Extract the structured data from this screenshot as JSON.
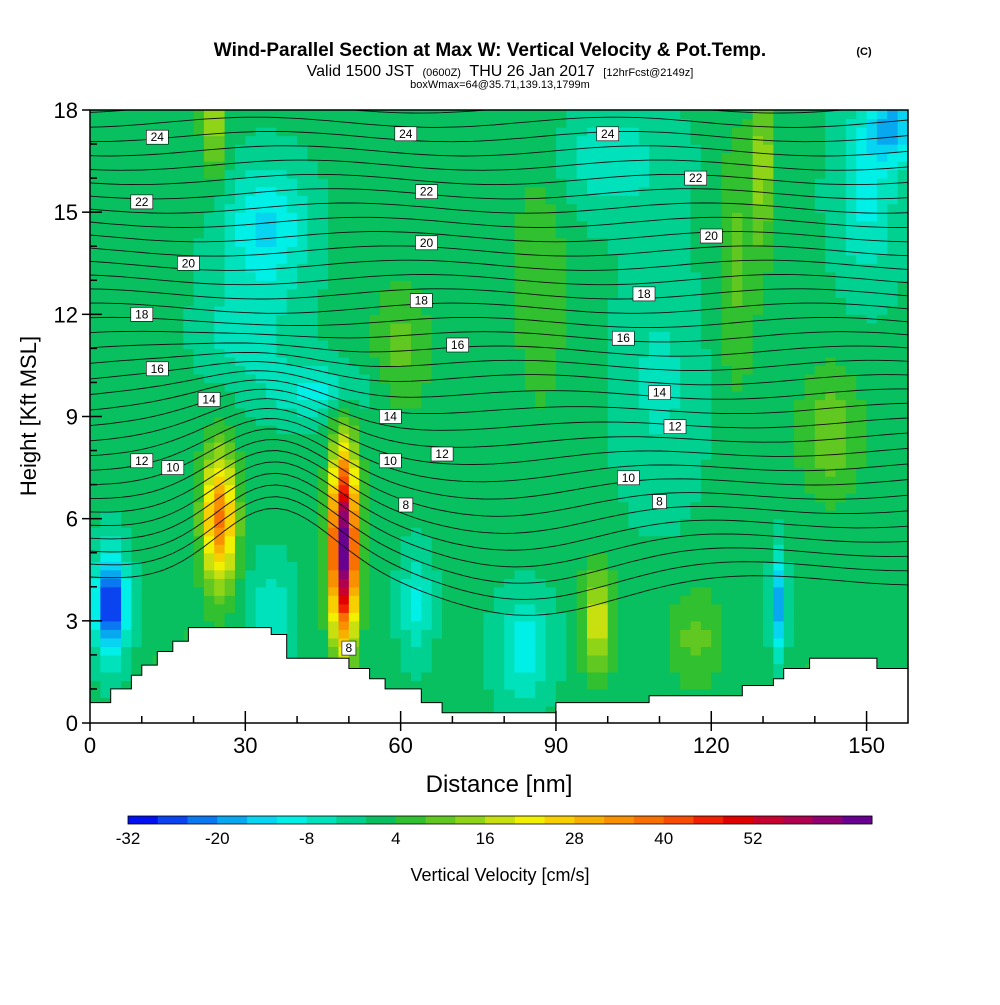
{
  "chart_data": {
    "type": "heatmap",
    "title": "Wind-Parallel Section at Max W: Vertical Velocity & Pot.Temp.",
    "title_mark": "(C)",
    "subtitle_pre": "Valid 1500 JST",
    "subtitle_zulu": "(0600Z)",
    "subtitle_date": "THU 26 Jan 2017",
    "subtitle_fcst": "[12hrFcst@2149z]",
    "subtitle2": "boxWmax=64@35.71,139.13,1799m",
    "xlabel": "Distance [nm]",
    "ylabel": "Height [Kft MSL]",
    "xlim": [
      0,
      158
    ],
    "ylim": [
      0,
      18
    ],
    "x_ticks": [
      0,
      30,
      60,
      90,
      120,
      150
    ],
    "x_tick_labels": [
      "0",
      "30",
      "60",
      "90",
      "120",
      "150"
    ],
    "y_ticks": [
      0,
      3,
      6,
      9,
      12,
      15,
      18
    ],
    "y_tick_labels": [
      "0",
      "3",
      "6",
      "9",
      "12",
      "15",
      "18"
    ],
    "colorbar": {
      "label": "Vertical Velocity [cm/s]",
      "min": -32,
      "max": 64,
      "step": 4,
      "tick_values": [
        -32,
        -20,
        -8,
        4,
        16,
        28,
        40,
        52
      ],
      "tick_labels": [
        "-32",
        "-20",
        "-8",
        "4",
        "16",
        "28",
        "40",
        "52"
      ],
      "colors": [
        "#0010f0",
        "#0a44f0",
        "#0a78f0",
        "#08a8f0",
        "#06d4f0",
        "#00f0e8",
        "#00e2bc",
        "#00d090",
        "#08c060",
        "#30c030",
        "#60c820",
        "#90d418",
        "#c8e010",
        "#f0f000",
        "#f8d000",
        "#f8b000",
        "#f89000",
        "#f87000",
        "#f84c00",
        "#f02000",
        "#e00000",
        "#c80030",
        "#b00050",
        "#900070",
        "#680090"
      ]
    },
    "wmax_features": [
      {
        "kind": "updraft",
        "x": 25,
        "y": 6,
        "peak": 36
      },
      {
        "kind": "updraft",
        "x": 49,
        "y": 5.2,
        "peak": 64
      },
      {
        "kind": "updraft",
        "x": 98,
        "y": 3,
        "peak": 18
      },
      {
        "kind": "downdraft",
        "x": 4,
        "y": 3.5,
        "peak": -30
      },
      {
        "kind": "downdraft",
        "x": 133,
        "y": 3.5,
        "peak": -20
      },
      {
        "kind": "downdraft",
        "x": 34,
        "y": 14.5,
        "peak": -14
      }
    ],
    "theta_labels": [
      {
        "x": 13,
        "y": 17.2,
        "text": "24"
      },
      {
        "x": 61,
        "y": 17.3,
        "text": "24"
      },
      {
        "x": 100,
        "y": 17.3,
        "text": "24"
      },
      {
        "x": 10,
        "y": 15.3,
        "text": "22"
      },
      {
        "x": 65,
        "y": 15.6,
        "text": "22"
      },
      {
        "x": 117,
        "y": 16.0,
        "text": "22"
      },
      {
        "x": 19,
        "y": 13.5,
        "text": "20"
      },
      {
        "x": 65,
        "y": 14.1,
        "text": "20"
      },
      {
        "x": 120,
        "y": 14.3,
        "text": "20"
      },
      {
        "x": 10,
        "y": 12.0,
        "text": "18"
      },
      {
        "x": 64,
        "y": 12.4,
        "text": "18"
      },
      {
        "x": 107,
        "y": 12.6,
        "text": "18"
      },
      {
        "x": 13,
        "y": 10.4,
        "text": "16"
      },
      {
        "x": 71,
        "y": 11.1,
        "text": "16"
      },
      {
        "x": 103,
        "y": 11.3,
        "text": "16"
      },
      {
        "x": 23,
        "y": 9.5,
        "text": "14"
      },
      {
        "x": 58,
        "y": 9.0,
        "text": "14"
      },
      {
        "x": 110,
        "y": 9.7,
        "text": "14"
      },
      {
        "x": 10,
        "y": 7.7,
        "text": "12"
      },
      {
        "x": 68,
        "y": 7.9,
        "text": "12"
      },
      {
        "x": 113,
        "y": 8.7,
        "text": "12"
      },
      {
        "x": 16,
        "y": 7.5,
        "text": "10"
      },
      {
        "x": 58,
        "y": 7.7,
        "text": "10"
      },
      {
        "x": 104,
        "y": 7.2,
        "text": "10"
      },
      {
        "x": 61,
        "y": 6.4,
        "text": "8"
      },
      {
        "x": 110,
        "y": 6.5,
        "text": "8"
      },
      {
        "x": 50,
        "y": 2.2,
        "text": "8"
      }
    ]
  }
}
